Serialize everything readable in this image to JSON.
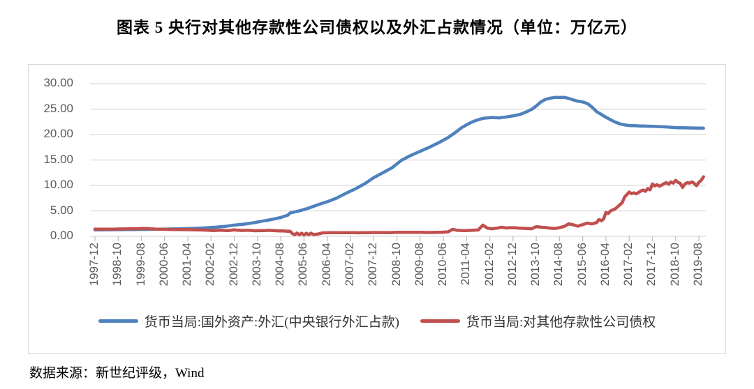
{
  "title": "图表 5  央行对其他存款性公司债权以及外汇占款情况（单位：万亿元）",
  "source": "数据来源：新世纪评级，Wind",
  "colors": {
    "series_fx_blue": "#4F81BD",
    "series_claims_red": "#C0504D",
    "gridline": "#d9d9d9",
    "axis_tick": "#bfbfbf",
    "axis_label_text": "#595959",
    "frame_border": "#d9d9d9"
  },
  "chart_data": {
    "type": "line",
    "title": "央行对其他存款性公司债权以及外汇占款情况",
    "unit": "万亿元",
    "grid": "horizontal",
    "legend_position": "bottom",
    "ylim": [
      0,
      30
    ],
    "y_tick_interval": 5,
    "y_tick_labels": [
      "0.00",
      "5.00",
      "10.00",
      "15.00",
      "20.00",
      "25.00",
      "30.00"
    ],
    "x_start": "1997-12",
    "x_end": "2019-08",
    "x_tick_interval_months": 10,
    "x_tick_labels": [
      "1997-12",
      "1998-10",
      "1999-08",
      "2000-06",
      "2001-04",
      "2002-02",
      "2002-12",
      "2003-10",
      "2004-08",
      "2005-06",
      "2006-04",
      "2007-02",
      "2007-12",
      "2008-10",
      "2009-08",
      "2010-06",
      "2011-04",
      "2012-02",
      "2012-12",
      "2013-10",
      "2014-08",
      "2015-06",
      "2016-04",
      "2017-02",
      "2017-12",
      "2018-10",
      "2019-08"
    ],
    "series": [
      {
        "name": "货币当局:国外资产:外汇(中央银行外汇占款)",
        "color": "#4F81BD",
        "points_format": "[months_after_1997-12, value_trillion_yuan]",
        "points": [
          [
            0,
            1.28
          ],
          [
            6,
            1.3
          ],
          [
            12,
            1.32
          ],
          [
            18,
            1.35
          ],
          [
            24,
            1.39
          ],
          [
            30,
            1.42
          ],
          [
            36,
            1.46
          ],
          [
            42,
            1.55
          ],
          [
            48,
            1.68
          ],
          [
            52,
            1.8
          ],
          [
            56,
            1.95
          ],
          [
            60,
            2.21
          ],
          [
            64,
            2.38
          ],
          [
            68,
            2.65
          ],
          [
            72,
            2.98
          ],
          [
            76,
            3.3
          ],
          [
            80,
            3.7
          ],
          [
            83,
            4.15
          ],
          [
            84,
            4.59
          ],
          [
            88,
            5.0
          ],
          [
            92,
            5.55
          ],
          [
            96,
            6.21
          ],
          [
            100,
            6.8
          ],
          [
            104,
            7.5
          ],
          [
            108,
            8.44
          ],
          [
            112,
            9.3
          ],
          [
            116,
            10.3
          ],
          [
            120,
            11.52
          ],
          [
            124,
            12.5
          ],
          [
            128,
            13.5
          ],
          [
            132,
            14.96
          ],
          [
            136,
            15.9
          ],
          [
            140,
            16.7
          ],
          [
            144,
            17.51
          ],
          [
            148,
            18.4
          ],
          [
            152,
            19.4
          ],
          [
            156,
            20.68
          ],
          [
            158,
            21.4
          ],
          [
            160,
            21.9
          ],
          [
            162,
            22.4
          ],
          [
            164,
            22.75
          ],
          [
            166,
            23.05
          ],
          [
            168,
            23.24
          ],
          [
            171,
            23.35
          ],
          [
            174,
            23.28
          ],
          [
            177,
            23.45
          ],
          [
            180,
            23.67
          ],
          [
            183,
            23.95
          ],
          [
            186,
            24.5
          ],
          [
            188,
            24.95
          ],
          [
            190,
            25.6
          ],
          [
            192,
            26.43
          ],
          [
            194,
            26.9
          ],
          [
            196,
            27.15
          ],
          [
            198,
            27.3
          ],
          [
            202,
            27.3
          ],
          [
            204,
            27.1
          ],
          [
            206,
            26.8
          ],
          [
            208,
            26.55
          ],
          [
            210,
            26.4
          ],
          [
            212,
            26.1
          ],
          [
            214,
            25.4
          ],
          [
            216,
            24.5
          ],
          [
            218,
            23.95
          ],
          [
            220,
            23.4
          ],
          [
            222,
            22.9
          ],
          [
            224,
            22.45
          ],
          [
            226,
            22.1
          ],
          [
            228,
            21.9
          ],
          [
            230,
            21.78
          ],
          [
            234,
            21.7
          ],
          [
            240,
            21.62
          ],
          [
            246,
            21.5
          ],
          [
            250,
            21.35
          ],
          [
            256,
            21.3
          ],
          [
            262,
            21.25
          ]
        ]
      },
      {
        "name": "货币当局:对其他存款性公司债权",
        "color": "#C0504D",
        "points_format": "[months_after_1997-12, value_trillion_yuan]",
        "points": [
          [
            0,
            1.42
          ],
          [
            6,
            1.4
          ],
          [
            12,
            1.45
          ],
          [
            18,
            1.5
          ],
          [
            22,
            1.55
          ],
          [
            26,
            1.42
          ],
          [
            32,
            1.36
          ],
          [
            38,
            1.32
          ],
          [
            44,
            1.28
          ],
          [
            48,
            1.22
          ],
          [
            51,
            1.14
          ],
          [
            54,
            1.2
          ],
          [
            57,
            1.12
          ],
          [
            60,
            1.26
          ],
          [
            63,
            1.15
          ],
          [
            66,
            1.2
          ],
          [
            69,
            1.1
          ],
          [
            72,
            1.12
          ],
          [
            75,
            1.18
          ],
          [
            78,
            1.1
          ],
          [
            81,
            1.05
          ],
          [
            84,
            0.98
          ],
          [
            85,
            0.55
          ],
          [
            86,
            0.3
          ],
          [
            87,
            0.65
          ],
          [
            88,
            0.3
          ],
          [
            89,
            0.62
          ],
          [
            90,
            0.28
          ],
          [
            91,
            0.6
          ],
          [
            92,
            0.3
          ],
          [
            93,
            0.62
          ],
          [
            94,
            0.35
          ],
          [
            96,
            0.45
          ],
          [
            98,
            0.68
          ],
          [
            102,
            0.73
          ],
          [
            108,
            0.72
          ],
          [
            114,
            0.7
          ],
          [
            120,
            0.75
          ],
          [
            126,
            0.73
          ],
          [
            132,
            0.8
          ],
          [
            138,
            0.8
          ],
          [
            144,
            0.75
          ],
          [
            150,
            0.82
          ],
          [
            152,
            0.88
          ],
          [
            154,
            1.38
          ],
          [
            156,
            1.18
          ],
          [
            159,
            1.12
          ],
          [
            162,
            1.18
          ],
          [
            165,
            1.25
          ],
          [
            167,
            2.2
          ],
          [
            169,
            1.6
          ],
          [
            171,
            1.5
          ],
          [
            173,
            1.6
          ],
          [
            175,
            1.78
          ],
          [
            177,
            1.65
          ],
          [
            180,
            1.7
          ],
          [
            183,
            1.6
          ],
          [
            186,
            1.55
          ],
          [
            188,
            1.5
          ],
          [
            190,
            1.9
          ],
          [
            192,
            1.8
          ],
          [
            194,
            1.72
          ],
          [
            196,
            1.6
          ],
          [
            198,
            1.55
          ],
          [
            200,
            1.7
          ],
          [
            202,
            1.95
          ],
          [
            204,
            2.45
          ],
          [
            206,
            2.25
          ],
          [
            208,
            2.0
          ],
          [
            210,
            2.3
          ],
          [
            212,
            2.6
          ],
          [
            214,
            2.45
          ],
          [
            216,
            2.7
          ],
          [
            217,
            3.3
          ],
          [
            218,
            3.05
          ],
          [
            219,
            3.4
          ],
          [
            220,
            4.7
          ],
          [
            221,
            4.5
          ],
          [
            222,
            5.0
          ],
          [
            224,
            5.4
          ],
          [
            226,
            6.2
          ],
          [
            227,
            6.6
          ],
          [
            228,
            7.7
          ],
          [
            229,
            8.2
          ],
          [
            230,
            8.7
          ],
          [
            231,
            8.4
          ],
          [
            232,
            8.55
          ],
          [
            233,
            8.35
          ],
          [
            234,
            8.6
          ],
          [
            235,
            8.9
          ],
          [
            236,
            9.1
          ],
          [
            237,
            8.85
          ],
          [
            238,
            9.4
          ],
          [
            239,
            9.15
          ],
          [
            240,
            10.3
          ],
          [
            241,
            9.9
          ],
          [
            242,
            10.15
          ],
          [
            243,
            9.85
          ],
          [
            244,
            10.05
          ],
          [
            245,
            10.35
          ],
          [
            246,
            10.55
          ],
          [
            247,
            10.25
          ],
          [
            248,
            10.7
          ],
          [
            249,
            10.45
          ],
          [
            250,
            11.0
          ],
          [
            251,
            10.6
          ],
          [
            252,
            10.4
          ],
          [
            253,
            9.6
          ],
          [
            254,
            10.3
          ],
          [
            255,
            10.55
          ],
          [
            256,
            10.45
          ],
          [
            257,
            10.7
          ],
          [
            258,
            10.4
          ],
          [
            259,
            9.95
          ],
          [
            260,
            10.6
          ],
          [
            261,
            11.0
          ],
          [
            262,
            11.7
          ]
        ]
      }
    ]
  }
}
